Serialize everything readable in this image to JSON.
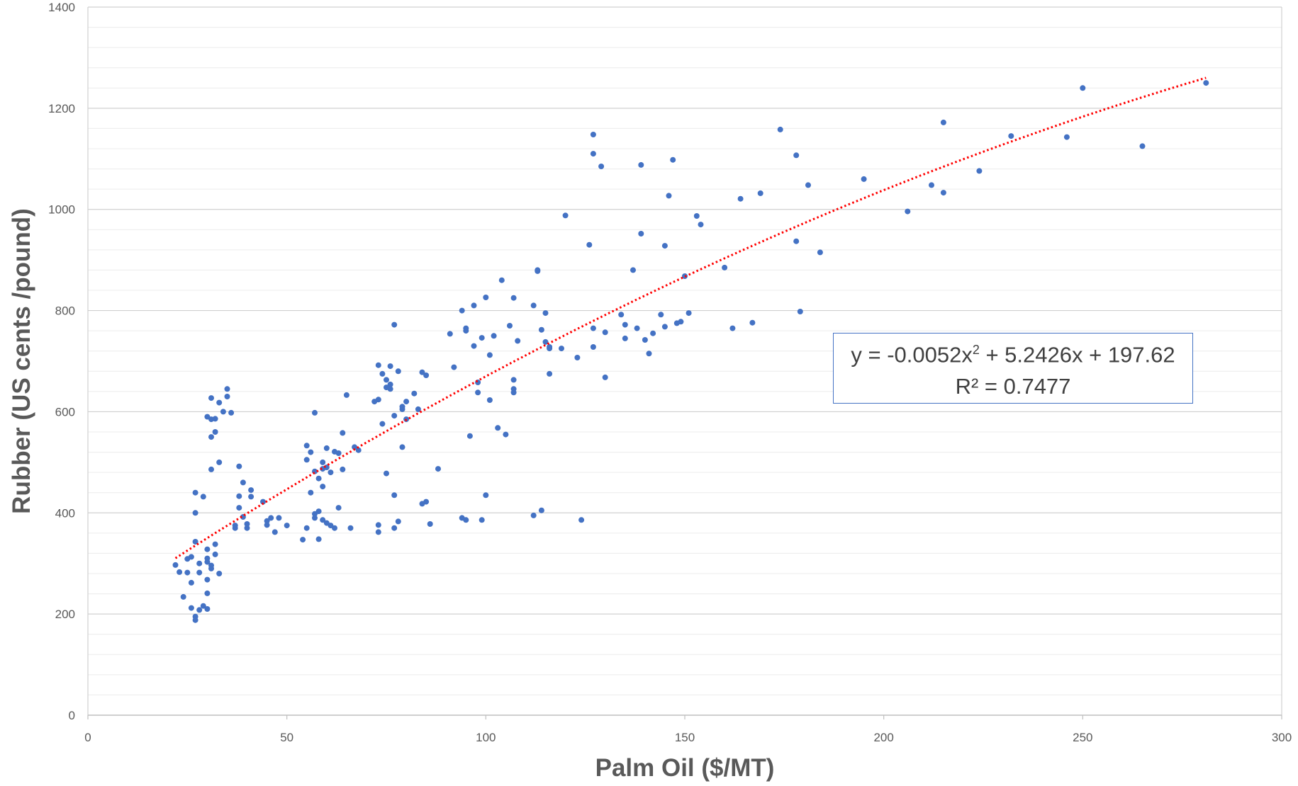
{
  "chart_data": {
    "type": "scatter",
    "xlabel": "Palm Oil ($/MT)",
    "ylabel": "Rubber (US cents /pound)",
    "xlim": [
      0,
      300
    ],
    "ylim": [
      0,
      1400
    ],
    "x_ticks": [
      "0",
      "50",
      "100",
      "150",
      "200",
      "250",
      "300"
    ],
    "y_ticks": [
      "0",
      "200",
      "400",
      "600",
      "800",
      "1000",
      "1200",
      "1400"
    ],
    "grid": true,
    "marker_color": "#4472c4",
    "trendline": {
      "type": "polynomial",
      "degree": 2,
      "coefficients": [
        -0.0052,
        5.2426,
        197.62
      ],
      "x_range": [
        22,
        281
      ],
      "color": "#ff0000",
      "style": "dotted",
      "equation_prefix": "y = -0.0052x",
      "equation_exponent": "2",
      "equation_suffix": " + 5.2426x + 197.62",
      "r_squared_label": "R² = 0.7477"
    },
    "points": [
      [
        22,
        297
      ],
      [
        23,
        283
      ],
      [
        24,
        234
      ],
      [
        25,
        282
      ],
      [
        25,
        309
      ],
      [
        26,
        313
      ],
      [
        26,
        212
      ],
      [
        26,
        262
      ],
      [
        27,
        440
      ],
      [
        27,
        400
      ],
      [
        27,
        343
      ],
      [
        27,
        188
      ],
      [
        27,
        195
      ],
      [
        28,
        208
      ],
      [
        28,
        282
      ],
      [
        28,
        300
      ],
      [
        29,
        432
      ],
      [
        29,
        216
      ],
      [
        30,
        590
      ],
      [
        30,
        328
      ],
      [
        30,
        303
      ],
      [
        30,
        268
      ],
      [
        30,
        241
      ],
      [
        30,
        210
      ],
      [
        30,
        310
      ],
      [
        31,
        627
      ],
      [
        31,
        585
      ],
      [
        31,
        550
      ],
      [
        31,
        486
      ],
      [
        31,
        296
      ],
      [
        31,
        290
      ],
      [
        32,
        586
      ],
      [
        32,
        560
      ],
      [
        32,
        338
      ],
      [
        32,
        318
      ],
      [
        33,
        500
      ],
      [
        33,
        280
      ],
      [
        33,
        618
      ],
      [
        34,
        600
      ],
      [
        35,
        630
      ],
      [
        35,
        645
      ],
      [
        36,
        598
      ],
      [
        37,
        375
      ],
      [
        37,
        370
      ],
      [
        38,
        492
      ],
      [
        38,
        433
      ],
      [
        38,
        410
      ],
      [
        39,
        392
      ],
      [
        39,
        460
      ],
      [
        40,
        370
      ],
      [
        40,
        378
      ],
      [
        41,
        432
      ],
      [
        41,
        445
      ],
      [
        44,
        422
      ],
      [
        45,
        384
      ],
      [
        45,
        376
      ],
      [
        46,
        390
      ],
      [
        47,
        362
      ],
      [
        48,
        390
      ],
      [
        50,
        375
      ],
      [
        54,
        347
      ],
      [
        55,
        370
      ],
      [
        55,
        533
      ],
      [
        55,
        505
      ],
      [
        56,
        520
      ],
      [
        56,
        440
      ],
      [
        57,
        598
      ],
      [
        57,
        482
      ],
      [
        57,
        398
      ],
      [
        57,
        390
      ],
      [
        58,
        468
      ],
      [
        58,
        403
      ],
      [
        58,
        348
      ],
      [
        59,
        500
      ],
      [
        59,
        487
      ],
      [
        59,
        452
      ],
      [
        59,
        386
      ],
      [
        60,
        528
      ],
      [
        60,
        380
      ],
      [
        60,
        490
      ],
      [
        61,
        375
      ],
      [
        61,
        480
      ],
      [
        62,
        521
      ],
      [
        62,
        370
      ],
      [
        63,
        410
      ],
      [
        63,
        518
      ],
      [
        64,
        558
      ],
      [
        64,
        486
      ],
      [
        65,
        633
      ],
      [
        66,
        370
      ],
      [
        67,
        530
      ],
      [
        68,
        524
      ],
      [
        72,
        620
      ],
      [
        73,
        692
      ],
      [
        73,
        624
      ],
      [
        73,
        376
      ],
      [
        73,
        362
      ],
      [
        74,
        675
      ],
      [
        74,
        576
      ],
      [
        75,
        663
      ],
      [
        75,
        648
      ],
      [
        75,
        478
      ],
      [
        76,
        690
      ],
      [
        76,
        654
      ],
      [
        76,
        645
      ],
      [
        77,
        772
      ],
      [
        77,
        370
      ],
      [
        77,
        435
      ],
      [
        77,
        592
      ],
      [
        78,
        680
      ],
      [
        78,
        383
      ],
      [
        79,
        610
      ],
      [
        79,
        605
      ],
      [
        79,
        530
      ],
      [
        80,
        620
      ],
      [
        80,
        585
      ],
      [
        82,
        636
      ],
      [
        83,
        605
      ],
      [
        84,
        678
      ],
      [
        84,
        418
      ],
      [
        85,
        422
      ],
      [
        85,
        672
      ],
      [
        86,
        378
      ],
      [
        88,
        487
      ],
      [
        91,
        754
      ],
      [
        92,
        688
      ],
      [
        94,
        800
      ],
      [
        94,
        390
      ],
      [
        95,
        760
      ],
      [
        95,
        386
      ],
      [
        95,
        765
      ],
      [
        96,
        552
      ],
      [
        97,
        730
      ],
      [
        97,
        810
      ],
      [
        98,
        658
      ],
      [
        98,
        638
      ],
      [
        99,
        746
      ],
      [
        99,
        386
      ],
      [
        100,
        826
      ],
      [
        100,
        435
      ],
      [
        101,
        712
      ],
      [
        101,
        623
      ],
      [
        102,
        750
      ],
      [
        103,
        568
      ],
      [
        104,
        860
      ],
      [
        105,
        555
      ],
      [
        106,
        770
      ],
      [
        107,
        645
      ],
      [
        107,
        638
      ],
      [
        107,
        825
      ],
      [
        107,
        663
      ],
      [
        108,
        740
      ],
      [
        112,
        395
      ],
      [
        112,
        810
      ],
      [
        113,
        880
      ],
      [
        113,
        878
      ],
      [
        114,
        405
      ],
      [
        114,
        762
      ],
      [
        115,
        738
      ],
      [
        115,
        795
      ],
      [
        116,
        725
      ],
      [
        116,
        728
      ],
      [
        116,
        675
      ],
      [
        119,
        725
      ],
      [
        120,
        988
      ],
      [
        123,
        707
      ],
      [
        124,
        386
      ],
      [
        126,
        930
      ],
      [
        127,
        1148
      ],
      [
        127,
        1110
      ],
      [
        127,
        728
      ],
      [
        127,
        765
      ],
      [
        129,
        1085
      ],
      [
        130,
        757
      ],
      [
        130,
        668
      ],
      [
        134,
        792
      ],
      [
        135,
        745
      ],
      [
        135,
        772
      ],
      [
        137,
        880
      ],
      [
        138,
        765
      ],
      [
        139,
        1088
      ],
      [
        139,
        952
      ],
      [
        140,
        742
      ],
      [
        141,
        715
      ],
      [
        142,
        755
      ],
      [
        144,
        792
      ],
      [
        145,
        928
      ],
      [
        145,
        768
      ],
      [
        146,
        1027
      ],
      [
        147,
        1098
      ],
      [
        148,
        775
      ],
      [
        149,
        778
      ],
      [
        150,
        868
      ],
      [
        151,
        795
      ],
      [
        153,
        987
      ],
      [
        154,
        970
      ],
      [
        160,
        885
      ],
      [
        162,
        765
      ],
      [
        164,
        1021
      ],
      [
        167,
        776
      ],
      [
        169,
        1032
      ],
      [
        174,
        1158
      ],
      [
        178,
        1107
      ],
      [
        178,
        937
      ],
      [
        179,
        798
      ],
      [
        181,
        1048
      ],
      [
        184,
        915
      ],
      [
        195,
        1060
      ],
      [
        206,
        996
      ],
      [
        212,
        1048
      ],
      [
        215,
        1033
      ],
      [
        215,
        1172
      ],
      [
        224,
        1076
      ],
      [
        232,
        1145
      ],
      [
        246,
        1143
      ],
      [
        250,
        1240
      ],
      [
        265,
        1125
      ],
      [
        281,
        1250
      ]
    ]
  }
}
